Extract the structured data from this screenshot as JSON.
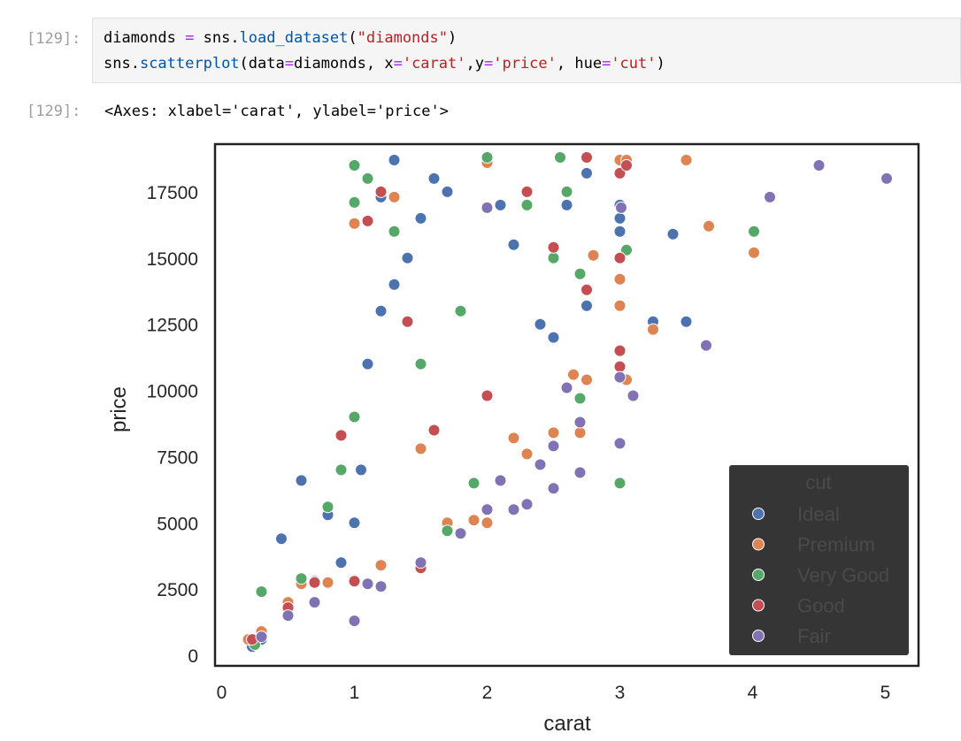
{
  "cell": {
    "in_prompt": "[129]:",
    "out_prompt": "[129]:",
    "code_lines": [
      [
        {
          "t": "diamonds "
        },
        {
          "t": "=",
          "c": "tok-op"
        },
        {
          "t": " sns."
        },
        {
          "t": "load_dataset",
          "c": "tok-fn"
        },
        {
          "t": "("
        },
        {
          "t": "\"diamonds\"",
          "c": "tok-str"
        },
        {
          "t": ")"
        }
      ],
      [
        {
          "t": "sns."
        },
        {
          "t": "scatterplot",
          "c": "tok-fn"
        },
        {
          "t": "(data"
        },
        {
          "t": "=",
          "c": "tok-op"
        },
        {
          "t": "diamonds, x"
        },
        {
          "t": "=",
          "c": "tok-op"
        },
        {
          "t": "'carat'",
          "c": "tok-str"
        },
        {
          "t": ",y"
        },
        {
          "t": "=",
          "c": "tok-op"
        },
        {
          "t": "'price'",
          "c": "tok-str"
        },
        {
          "t": ", hue"
        },
        {
          "t": "=",
          "c": "tok-op"
        },
        {
          "t": "'cut'",
          "c": "tok-str"
        },
        {
          "t": ")"
        }
      ]
    ],
    "output_text": "<Axes: xlabel='carat', ylabel='price'>"
  },
  "chart_data": {
    "type": "scatter",
    "xlabel": "carat",
    "ylabel": "price",
    "xlim": [
      -0.05,
      5.25
    ],
    "ylim": [
      -400,
      19300
    ],
    "xticks": [
      0,
      1,
      2,
      3,
      4,
      5
    ],
    "yticks": [
      0,
      2500,
      5000,
      7500,
      10000,
      12500,
      15000,
      17500
    ],
    "legend": {
      "title": "cut",
      "placement": "lower-right",
      "background": "#353535"
    },
    "series": [
      {
        "name": "Ideal",
        "color": "#4c72b0",
        "points": [
          [
            0.23,
            326
          ],
          [
            0.3,
            600
          ],
          [
            0.5,
            1500
          ],
          [
            0.7,
            2800
          ],
          [
            0.9,
            3500
          ],
          [
            1.0,
            5000
          ],
          [
            1.0,
            9000
          ],
          [
            1.1,
            11000
          ],
          [
            1.2,
            13000
          ],
          [
            1.3,
            14000
          ],
          [
            1.4,
            15000
          ],
          [
            1.5,
            16500
          ],
          [
            1.6,
            18000
          ],
          [
            1.7,
            17500
          ],
          [
            2.0,
            18800
          ],
          [
            2.1,
            17000
          ],
          [
            2.2,
            15500
          ],
          [
            2.4,
            12500
          ],
          [
            2.5,
            12000
          ],
          [
            2.6,
            17000
          ],
          [
            2.75,
            13200
          ],
          [
            2.75,
            18200
          ],
          [
            3.0,
            16500
          ],
          [
            3.0,
            16000
          ],
          [
            3.0,
            17000
          ],
          [
            3.25,
            12600
          ],
          [
            3.5,
            12600
          ],
          [
            3.4,
            15900
          ],
          [
            0.6,
            6600
          ],
          [
            0.45,
            4400
          ],
          [
            0.8,
            5300
          ],
          [
            1.2,
            17300
          ],
          [
            1.3,
            18700
          ],
          [
            1.05,
            7000
          ]
        ]
      },
      {
        "name": "Premium",
        "color": "#dd8452",
        "points": [
          [
            0.2,
            600
          ],
          [
            0.3,
            900
          ],
          [
            0.5,
            2000
          ],
          [
            0.6,
            2700
          ],
          [
            0.8,
            2750
          ],
          [
            1.0,
            2800
          ],
          [
            1.2,
            3400
          ],
          [
            1.5,
            7800
          ],
          [
            1.7,
            5000
          ],
          [
            1.9,
            5100
          ],
          [
            2.0,
            5000
          ],
          [
            2.0,
            18600
          ],
          [
            2.2,
            8200
          ],
          [
            2.3,
            7600
          ],
          [
            2.5,
            8400
          ],
          [
            2.65,
            10600
          ],
          [
            2.7,
            8400
          ],
          [
            2.75,
            10400
          ],
          [
            2.8,
            15100
          ],
          [
            3.0,
            13200
          ],
          [
            3.0,
            14200
          ],
          [
            3.0,
            18700
          ],
          [
            3.05,
            10400
          ],
          [
            3.05,
            18700
          ],
          [
            3.5,
            18700
          ],
          [
            3.25,
            12300
          ],
          [
            3.67,
            16200
          ],
          [
            4.01,
            15200
          ],
          [
            1.0,
            16300
          ],
          [
            1.3,
            17300
          ]
        ]
      },
      {
        "name": "Very Good",
        "color": "#55a868",
        "points": [
          [
            0.25,
            400
          ],
          [
            0.3,
            2400
          ],
          [
            0.6,
            2900
          ],
          [
            0.8,
            5600
          ],
          [
            0.9,
            7000
          ],
          [
            1.0,
            9000
          ],
          [
            1.0,
            18500
          ],
          [
            1.0,
            17100
          ],
          [
            1.1,
            18000
          ],
          [
            1.3,
            16000
          ],
          [
            1.5,
            11000
          ],
          [
            1.7,
            4700
          ],
          [
            1.9,
            6500
          ],
          [
            2.0,
            18800
          ],
          [
            2.3,
            17000
          ],
          [
            2.5,
            15000
          ],
          [
            2.6,
            17500
          ],
          [
            2.7,
            14400
          ],
          [
            2.7,
            9700
          ],
          [
            3.0,
            6500
          ],
          [
            3.05,
            15300
          ],
          [
            4.01,
            16000
          ],
          [
            2.55,
            18800
          ],
          [
            1.8,
            13000
          ]
        ]
      },
      {
        "name": "Good",
        "color": "#c44e52",
        "points": [
          [
            0.23,
            600
          ],
          [
            0.5,
            1800
          ],
          [
            0.7,
            2750
          ],
          [
            0.9,
            8300
          ],
          [
            1.0,
            2800
          ],
          [
            1.1,
            16400
          ],
          [
            1.2,
            17500
          ],
          [
            1.5,
            3300
          ],
          [
            1.6,
            8500
          ],
          [
            2.0,
            9800
          ],
          [
            2.3,
            17500
          ],
          [
            2.5,
            15400
          ],
          [
            2.75,
            18800
          ],
          [
            2.75,
            13800
          ],
          [
            3.0,
            10900
          ],
          [
            3.0,
            11500
          ],
          [
            3.0,
            18200
          ],
          [
            3.05,
            18500
          ],
          [
            3.0,
            15000
          ],
          [
            1.4,
            12600
          ]
        ]
      },
      {
        "name": "Fair",
        "color": "#8172b3",
        "points": [
          [
            0.3,
            700
          ],
          [
            0.5,
            1500
          ],
          [
            0.7,
            2000
          ],
          [
            1.0,
            1300
          ],
          [
            1.1,
            2700
          ],
          [
            1.2,
            2600
          ],
          [
            1.5,
            3500
          ],
          [
            1.8,
            4600
          ],
          [
            2.0,
            5500
          ],
          [
            2.1,
            6600
          ],
          [
            2.2,
            5500
          ],
          [
            2.3,
            5700
          ],
          [
            2.4,
            7200
          ],
          [
            2.5,
            6300
          ],
          [
            2.5,
            7900
          ],
          [
            2.6,
            10100
          ],
          [
            2.7,
            6900
          ],
          [
            2.7,
            8800
          ],
          [
            3.0,
            8000
          ],
          [
            3.0,
            10500
          ],
          [
            3.01,
            16900
          ],
          [
            3.1,
            9800
          ],
          [
            3.65,
            11700
          ],
          [
            4.13,
            17300
          ],
          [
            4.5,
            18500
          ],
          [
            5.01,
            18000
          ],
          [
            2.0,
            16900
          ]
        ]
      }
    ]
  }
}
